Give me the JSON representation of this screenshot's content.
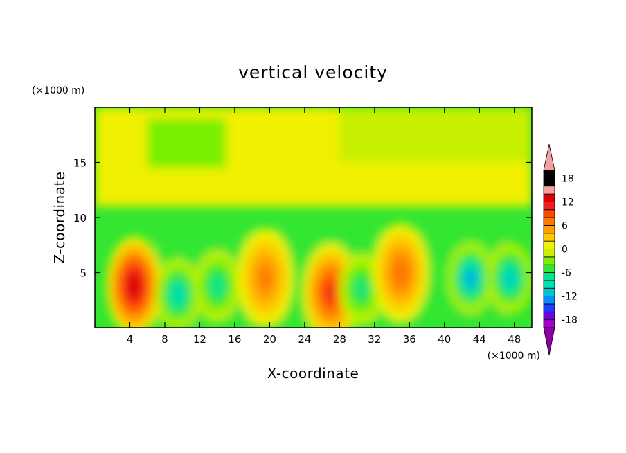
{
  "chart_data": {
    "type": "heatmap",
    "title": "vertical velocity",
    "xlabel": "X-coordinate",
    "ylabel": "Z-coordinate",
    "x_unit_label": "(×1000 m)",
    "y_unit_label": "(×1000 m)",
    "xlim": [
      0,
      50
    ],
    "ylim": [
      0,
      20
    ],
    "x_ticks": [
      4,
      8,
      12,
      16,
      20,
      24,
      28,
      32,
      36,
      40,
      44,
      48
    ],
    "y_ticks": [
      5,
      10,
      15
    ],
    "colorbar": {
      "min": -20,
      "max": 20,
      "step": 2,
      "tick_labels": [
        18,
        12,
        6,
        0,
        -6,
        -12,
        -18
      ],
      "extend": "both",
      "colors": [
        "#a000c8",
        "#6e00dc",
        "#1e3cff",
        "#0a8cff",
        "#00c8c8",
        "#00dcb4",
        "#00e68c",
        "#32e632",
        "#78f000",
        "#c8f000",
        "#f0f000",
        "#ffc800",
        "#ffa000",
        "#ff7800",
        "#ff4600",
        "#f01e1e",
        "#dc0000",
        "#f5a0a0"
      ],
      "under_color": "#8c00a0",
      "over_color": "#f5a0a0"
    },
    "features": [
      {
        "name": "updraft",
        "x": 4.5,
        "z": 3.8,
        "peak": 16
      },
      {
        "name": "downdraft",
        "x": 9.5,
        "z": 3.0,
        "peak": -11
      },
      {
        "name": "downdraft",
        "x": 14,
        "z": 3.8,
        "peak": -9
      },
      {
        "name": "updraft",
        "x": 19.5,
        "z": 4.5,
        "peak": 8
      },
      {
        "name": "updraft",
        "x": 27,
        "z": 3.2,
        "peak": 12
      },
      {
        "name": "downdraft",
        "x": 30.5,
        "z": 3.5,
        "peak": -8
      },
      {
        "name": "updraft",
        "x": 35,
        "z": 5.0,
        "peak": 9
      },
      {
        "name": "downdraft",
        "x": 43,
        "z": 4.5,
        "peak": -14
      },
      {
        "name": "downdraft",
        "x": 47.5,
        "z": 4.5,
        "peak": -12
      }
    ]
  }
}
